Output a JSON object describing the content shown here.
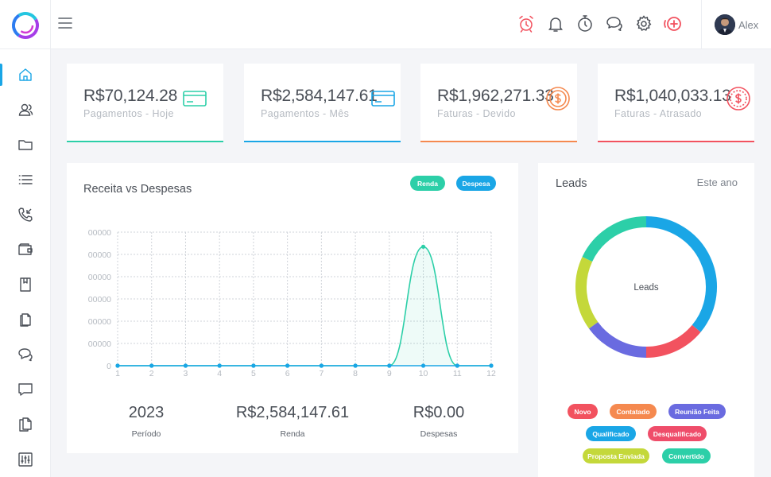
{
  "header": {
    "username": "Alex",
    "icons": [
      "alarm-icon",
      "bell-icon",
      "timer-icon",
      "chat-icon",
      "gear-icon",
      "add-circle-icon"
    ]
  },
  "sidebar": {
    "items": [
      "home-icon",
      "contacts-icon",
      "folder-icon",
      "list-icon",
      "phone-icon",
      "wallet-icon",
      "book-icon",
      "documents-icon",
      "chat-icon",
      "message-icon",
      "files-icon",
      "sliders-icon"
    ]
  },
  "cards": [
    {
      "amount": "R$70,124.28",
      "label": "Pagamentos - Hoje",
      "icon": "credit-card-icon",
      "color": "#2ccfa8"
    },
    {
      "amount": "R$2,584,147.61",
      "label": "Pagamentos - Mês",
      "icon": "credit-card-icon",
      "color": "#1aa6e6"
    },
    {
      "amount": "R$1,962,271.33",
      "label": "Faturas - Devido",
      "icon": "dollar-coin-icon",
      "color": "#f5894f"
    },
    {
      "amount": "R$1,040,033.13",
      "label": "Faturas - Atrasado",
      "icon": "dollar-coin-icon",
      "color": "#f2525f"
    }
  ],
  "revenue": {
    "title": "Receita vs Despesas",
    "legend": [
      {
        "label": "Renda",
        "color": "#2ccfa8"
      },
      {
        "label": "Despesa",
        "color": "#1aa6e6"
      }
    ],
    "summary": [
      {
        "value": "2023",
        "label": "Período"
      },
      {
        "value": "R$2,584,147.61",
        "label": "Renda"
      },
      {
        "value": "R$0.00",
        "label": "Despesas"
      }
    ]
  },
  "chart_data": {
    "type": "area",
    "x": [
      1,
      2,
      3,
      4,
      5,
      6,
      7,
      8,
      9,
      10,
      11,
      12
    ],
    "y_tick_labels": [
      "00000",
      "00000",
      "00000",
      "00000",
      "00000",
      "00000",
      "0"
    ],
    "series": [
      {
        "name": "Renda",
        "color": "#2ccfa8",
        "values": [
          0,
          0,
          0,
          0,
          0,
          0,
          0,
          0,
          0,
          2584147.61,
          0,
          0
        ]
      },
      {
        "name": "Despesa",
        "color": "#1aa6e6",
        "values": [
          0,
          0,
          0,
          0,
          0,
          0,
          0,
          0,
          0,
          0,
          0,
          0
        ]
      }
    ],
    "ylim": [
      0,
      2900000
    ],
    "grid": true
  },
  "leads": {
    "title": "Leads",
    "period": "Este ano",
    "center_label": "Leads",
    "segments": [
      {
        "label": "Novo",
        "color": "#f2525f",
        "share": 0.14
      },
      {
        "label": "Contatado",
        "color": "#f5894f",
        "share": 0.0
      },
      {
        "label": "Reunião Feita",
        "color": "#6a6be0",
        "share": 0.15
      },
      {
        "label": "Qualificado",
        "color": "#1aa6e6",
        "share": 0.36
      },
      {
        "label": "Desqualificado",
        "color": "#ef4d6a",
        "share": 0.0
      },
      {
        "label": "Proposta Enviada",
        "color": "#c4d83a",
        "share": 0.17
      },
      {
        "label": "Convertido",
        "color": "#2ccfa8",
        "share": 0.18
      }
    ]
  }
}
